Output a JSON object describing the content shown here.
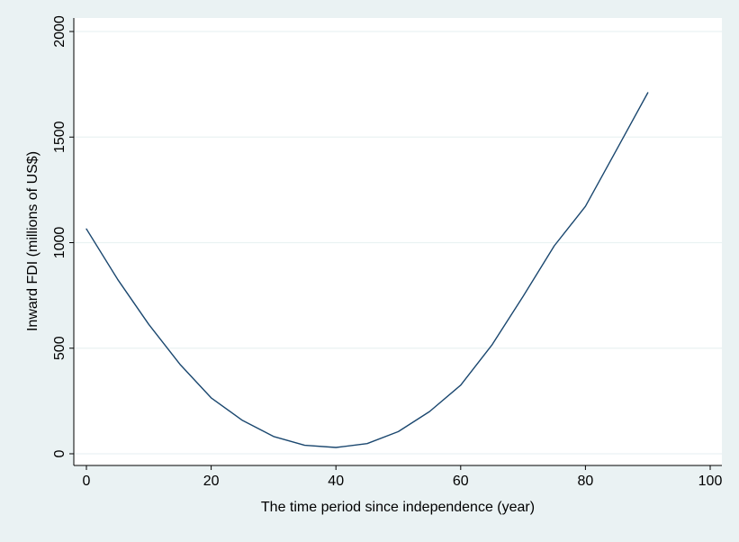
{
  "chart_data": {
    "type": "line",
    "title": "",
    "xlabel": "The time period since independence (year)",
    "ylabel": "Inward FDI (millions of US$)",
    "xlim": [
      0,
      100
    ],
    "ylim": [
      0,
      2000
    ],
    "xticks": [
      0,
      20,
      40,
      60,
      80,
      100
    ],
    "yticks": [
      0,
      500,
      1000,
      1500,
      2000
    ],
    "grid": "horizontal",
    "legend": "none",
    "colors": {
      "background": "#eaf2f3",
      "plot_area": "#ffffff",
      "line": "#1a476f",
      "grid": "#eaf2f3",
      "axis": "#000000"
    },
    "series": [
      {
        "x": [
          0,
          5,
          10,
          15,
          20,
          25,
          30,
          35,
          40,
          45,
          50,
          55,
          60,
          65,
          70,
          75,
          80,
          85,
          90
        ],
        "values": [
          1065,
          826,
          613,
          424,
          265,
          158,
          82,
          40,
          30,
          48,
          105,
          200,
          325,
          515,
          745,
          985,
          1172,
          1440,
          1710
        ]
      }
    ]
  }
}
